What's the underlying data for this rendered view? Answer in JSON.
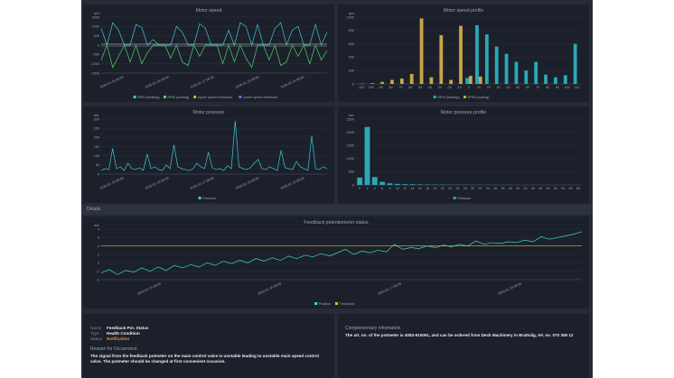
{
  "charts": [
    {
      "type": "line",
      "title": "Motor speed",
      "unit": "rpm",
      "ylim": [
        -1500,
        1500
      ],
      "yticks": [
        -1500,
        -1000,
        -500,
        0,
        500,
        1000,
        1500
      ],
      "xlabels": [
        "2020-01-15 00:00",
        "2020-01-16 00:00",
        "2020-01-17 00:00",
        "2020-01-18 00:00",
        "2020-01-19 00:00"
      ],
      "series": [
        {
          "name": "RPM (heating)",
          "color": "#3cc8d8",
          "values": [
            900,
            0,
            1200,
            800,
            0,
            0,
            1100,
            950,
            0,
            300,
            0,
            0,
            0,
            1000,
            700,
            0,
            0,
            1150,
            900,
            0,
            0,
            0,
            800,
            0,
            1200,
            1000,
            0,
            1100,
            0,
            0,
            900,
            1200,
            0,
            800,
            1000,
            0,
            0,
            1100,
            0,
            700
          ]
        },
        {
          "name": "RPM (cooling)",
          "color": "#4fd36a",
          "values": [
            -800,
            0,
            -1200,
            -600,
            0,
            -900,
            0,
            -1000,
            -400,
            0,
            0,
            0,
            -700,
            0,
            -900,
            -1100,
            0,
            -600,
            0,
            0,
            0,
            -1000,
            0,
            -900,
            0,
            -700,
            -1200,
            0,
            0,
            -800,
            0,
            -1100,
            -900,
            0,
            -600,
            0,
            -1000,
            0,
            -800,
            -300
          ]
        },
        {
          "name": "Upper speed threshold",
          "color": "#d8b430",
          "values": [
            50,
            50
          ]
        },
        {
          "name": "Lower speed threshold",
          "color": "#4a7fd8",
          "values": [
            -50,
            -50
          ]
        }
      ]
    },
    {
      "type": "bar",
      "title": "Motor speed profile",
      "unit": "rpm",
      "ylim": [
        0,
        1000
      ],
      "yticks": [
        0,
        200,
        400,
        600,
        800,
        1000
      ],
      "categories": [
        -110,
        -100,
        -90,
        -80,
        -70,
        -60,
        -50,
        -40,
        -30,
        -20,
        -10,
        0,
        10,
        20,
        30,
        40,
        50,
        60,
        70,
        80,
        90,
        100,
        110
      ],
      "series": [
        {
          "name": "RPM (heating)",
          "color": "#2aa9b8",
          "values": [
            0,
            0,
            0,
            0,
            0,
            0,
            0,
            0,
            0,
            0,
            0,
            90,
            880,
            740,
            560,
            450,
            330,
            200,
            330,
            140,
            100,
            130,
            600
          ]
        },
        {
          "name": "RPM (cooling)",
          "color": "#c9a548",
          "values": [
            5,
            10,
            30,
            60,
            80,
            150,
            980,
            100,
            730,
            60,
            870,
            120,
            110,
            0,
            0,
            0,
            0,
            0,
            0,
            0,
            0,
            0,
            0
          ]
        }
      ]
    },
    {
      "type": "line",
      "title": "Motor pressure",
      "unit": "bar",
      "ylim": [
        0,
        300
      ],
      "yticks": [
        0,
        50,
        100,
        150,
        200,
        250,
        300
      ],
      "xlabels": [
        "2020-01-15 00:00",
        "2020-01-16 00:00",
        "2020-01-17 00:00",
        "2020-01-18 00:00",
        "2020-01-19 00:00"
      ],
      "series": [
        {
          "name": "Pressure",
          "color": "#3cc8d8",
          "values": [
            20,
            30,
            25,
            140,
            30,
            40,
            20,
            60,
            30,
            25,
            35,
            20,
            110,
            30,
            40,
            25,
            20,
            50,
            30,
            160,
            40,
            30,
            25,
            20,
            30,
            60,
            40,
            30,
            120,
            35,
            25,
            30,
            20,
            45,
            30,
            290,
            40,
            30,
            25,
            35,
            60,
            80,
            30,
            25,
            40,
            30,
            20,
            130,
            35,
            30,
            25,
            70,
            40,
            30,
            20,
            210,
            30,
            25,
            40,
            30
          ]
        }
      ]
    },
    {
      "type": "bar",
      "title": "Motor pressure profile",
      "unit": "bar",
      "ylim": [
        0,
        2500
      ],
      "yticks": [
        0,
        500,
        1000,
        1500,
        2000,
        2500
      ],
      "categories": [
        0,
        2,
        4,
        6,
        8,
        10,
        12,
        14,
        16,
        18,
        20,
        22,
        24,
        26,
        28,
        30,
        32,
        34,
        36,
        38,
        40,
        42,
        44,
        46,
        48,
        50,
        52,
        54,
        56,
        58
      ],
      "series": [
        {
          "name": "Pressure",
          "color": "#2aa9b8",
          "values": [
            280,
            2200,
            300,
            120,
            60,
            40,
            30,
            25,
            20,
            15,
            12,
            10,
            8,
            8,
            6,
            5,
            5,
            4,
            4,
            3,
            3,
            2,
            2,
            2,
            1,
            1,
            1,
            1,
            1,
            1
          ]
        }
      ]
    },
    {
      "type": "line",
      "title": "Feedback potentiometer status",
      "unit": "mA",
      "ylim": [
        -2,
        4
      ],
      "yticks": [
        -2,
        -1,
        0,
        1,
        2,
        3,
        4
      ],
      "xlabels": [
        "2020-01-15 00:00",
        "2020-01-16 00:00",
        "2020-01-17 00:00",
        "2020-01-18 00:00"
      ],
      "series": [
        {
          "name": "Position",
          "color": "#3cd8d0",
          "values": [
            -1.2,
            -0.8,
            -1.4,
            -0.9,
            -1.1,
            -0.6,
            -1.0,
            -0.5,
            -0.9,
            -0.3,
            -0.6,
            -0.2,
            -0.5,
            0.0,
            -0.3,
            0.2,
            -0.1,
            0.3,
            0.0,
            0.5,
            0.2,
            0.6,
            0.3,
            0.8,
            0.5,
            0.9,
            0.7,
            1.1,
            0.8,
            1.2,
            1.6,
            1.0,
            1.4,
            1.2,
            1.5,
            1.3,
            2.2,
            1.6,
            1.8,
            1.7,
            2.0,
            1.8,
            2.1,
            1.9,
            2.2,
            2.0,
            2.6,
            2.2,
            2.4,
            2.3,
            2.5,
            2.4,
            2.7,
            2.5,
            3.1,
            2.8,
            3.0,
            3.2,
            3.4,
            3.7
          ]
        },
        {
          "name": "Threshold",
          "color": "#e0b830",
          "values": [
            2,
            2
          ]
        }
      ]
    }
  ],
  "details": {
    "heading": "Details",
    "name_label": "Name",
    "name": "Feedback Pot. Status",
    "type_label": "Type",
    "type": "Health Condition",
    "status_label": "Status",
    "status": "Notification",
    "status_color": "#e8912d",
    "reason_heading": "Reason for Occurrence",
    "reason": "The signal from the feedback potmeter on the main control valve is unstable leading to unstable main speed control valve. The potmeter should be changed at first convenient occasion.",
    "complementary_heading": "Complementary information",
    "complementary": "The art. no. of the potmeter is 4083-910061, and can be ordered from Deck Machinery in Brattvåg, tel. no. 070 309 12"
  }
}
